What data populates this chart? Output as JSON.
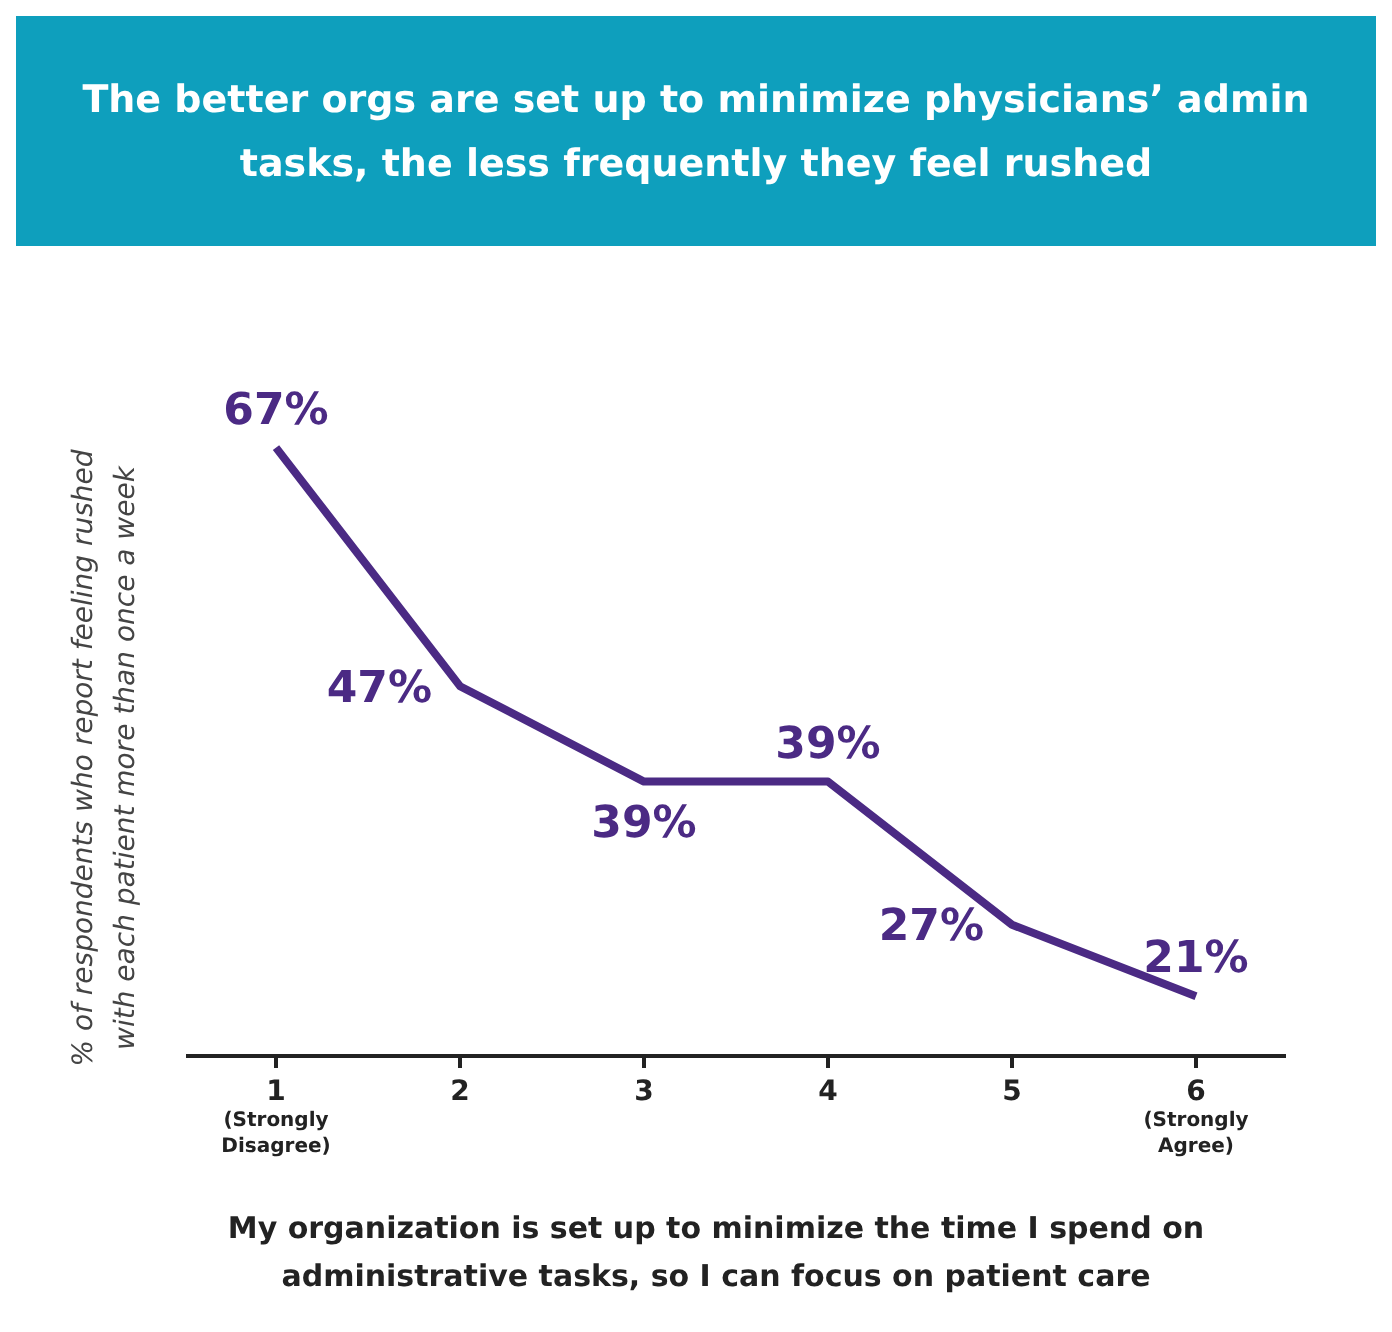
{
  "chart_data": {
    "type": "line",
    "title": "The better orgs are set up to minimize physicians’ admin tasks, the less frequently they feel rushed",
    "xlabel": "My organization is set up to minimize the time I spend on administrative tasks, so I can focus on patient care",
    "ylabel": "% of respondents who report feeling rushed with each patient more than once a week",
    "categories": [
      "1\n(Strongly\nDisagree)",
      "2",
      "3",
      "4",
      "5",
      "6\n(Strongly\nAgree)"
    ],
    "series": [
      {
        "color": "#4b2a84",
        "values": [
          67,
          47,
          39,
          39,
          27,
          21
        ],
        "value_labels": [
          "67%",
          "47%",
          "39%",
          "39%",
          "27%",
          "21%"
        ]
      }
    ],
    "relative": false,
    "grid": false,
    "legend": false,
    "marker": "none",
    "line_style": "solid"
  }
}
